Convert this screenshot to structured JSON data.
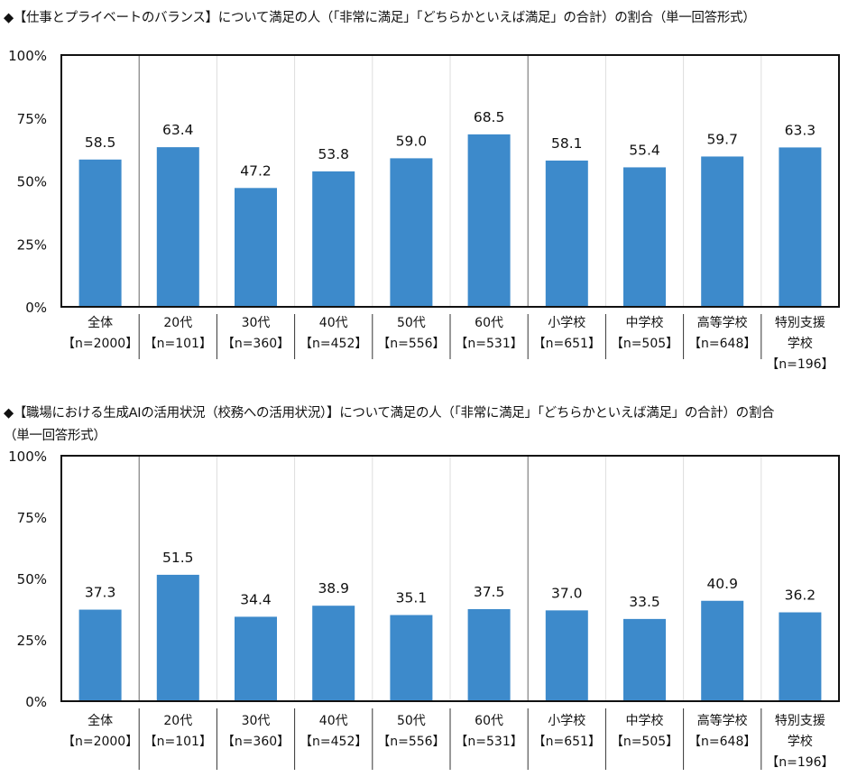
{
  "chart_data": [
    {
      "type": "bar",
      "title": "◆【仕事とプライベートのバランス】について満足の人（「非常に満足」「どちらかといえば満足」の合計）の割合（単一回答形式）",
      "title_lines": [
        "◆【仕事とプライベートのバランス】について満足の人（「非常に満足」「どちらかといえば満足」の合計）の割合（単一回答形式）"
      ],
      "categories": [
        [
          "全体",
          "【n=2000】"
        ],
        [
          "20代",
          "【n=101】"
        ],
        [
          "30代",
          "【n=360】"
        ],
        [
          "40代",
          "【n=452】"
        ],
        [
          "50代",
          "【n=556】"
        ],
        [
          "60代",
          "【n=531】"
        ],
        [
          "小学校",
          "【n=651】"
        ],
        [
          "中学校",
          "【n=505】"
        ],
        [
          "高等学校",
          "【n=648】"
        ],
        [
          "特別支援",
          "学校",
          "【n=196】"
        ]
      ],
      "values": [
        58.5,
        63.4,
        47.2,
        53.8,
        59.0,
        68.5,
        58.1,
        55.4,
        59.7,
        63.3
      ],
      "data_labels": [
        "58.5",
        "63.4",
        "47.2",
        "53.8",
        "59.0",
        "68.5",
        "58.1",
        "55.4",
        "59.7",
        "63.3"
      ],
      "ylim": [
        0,
        100
      ],
      "yticks": [
        "0%",
        "25%",
        "50%",
        "75%",
        "100%"
      ],
      "bar_color": "#3d8acb",
      "group_separators_after": [
        0,
        5
      ],
      "grid": false
    },
    {
      "type": "bar",
      "title": "◆【職場における生成AIの活用状況（校務への活用状況）】について満足の人（「非常に満足」「どちらかといえば満足」の合計）の割合（単一回答形式）",
      "title_lines": [
        "◆【職場における生成AIの活用状況（校務への活用状況）】について満足の人（「非常に満足」「どちらかといえば満足」の合計）の割合",
        "（単一回答形式）"
      ],
      "categories": [
        [
          "全体",
          "【n=2000】"
        ],
        [
          "20代",
          "【n=101】"
        ],
        [
          "30代",
          "【n=360】"
        ],
        [
          "40代",
          "【n=452】"
        ],
        [
          "50代",
          "【n=556】"
        ],
        [
          "60代",
          "【n=531】"
        ],
        [
          "小学校",
          "【n=651】"
        ],
        [
          "中学校",
          "【n=505】"
        ],
        [
          "高等学校",
          "【n=648】"
        ],
        [
          "特別支援",
          "学校",
          "【n=196】"
        ]
      ],
      "values": [
        37.3,
        51.5,
        34.4,
        38.9,
        35.1,
        37.5,
        37.0,
        33.5,
        40.9,
        36.2
      ],
      "data_labels": [
        "37.3",
        "51.5",
        "34.4",
        "38.9",
        "35.1",
        "37.5",
        "37.0",
        "33.5",
        "40.9",
        "36.2"
      ],
      "ylim": [
        0,
        100
      ],
      "yticks": [
        "0%",
        "25%",
        "50%",
        "75%",
        "100%"
      ],
      "bar_color": "#3d8acb",
      "group_separators_after": [
        0,
        5
      ],
      "grid": false
    }
  ]
}
